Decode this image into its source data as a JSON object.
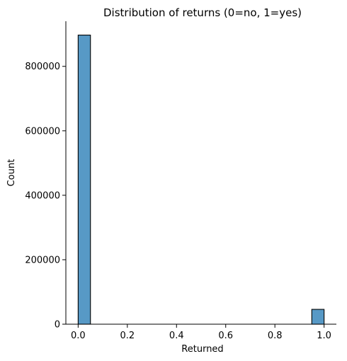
{
  "chart_data": {
    "type": "bar",
    "title": "Distribution of returns (0=no, 1=yes)",
    "xlabel": "Returned",
    "ylabel": "Count",
    "xlim": [
      -0.05,
      1.05
    ],
    "ylim": [
      0,
      940000
    ],
    "xticks": [
      0.0,
      0.2,
      0.4,
      0.6,
      0.8,
      1.0
    ],
    "xtick_labels": [
      "0.0",
      "0.2",
      "0.4",
      "0.6",
      "0.8",
      "1.0"
    ],
    "yticks": [
      0,
      200000,
      400000,
      600000,
      800000
    ],
    "ytick_labels": [
      "0",
      "200000",
      "400000",
      "600000",
      "800000"
    ],
    "bins": [
      {
        "x0": 0.0,
        "x1": 0.05,
        "count": 897000
      },
      {
        "x0": 0.95,
        "x1": 1.0,
        "count": 46000
      }
    ],
    "bar_color": "#5799c6",
    "edge_color": "#000000",
    "grid": false,
    "spines": [
      "left",
      "bottom"
    ]
  }
}
